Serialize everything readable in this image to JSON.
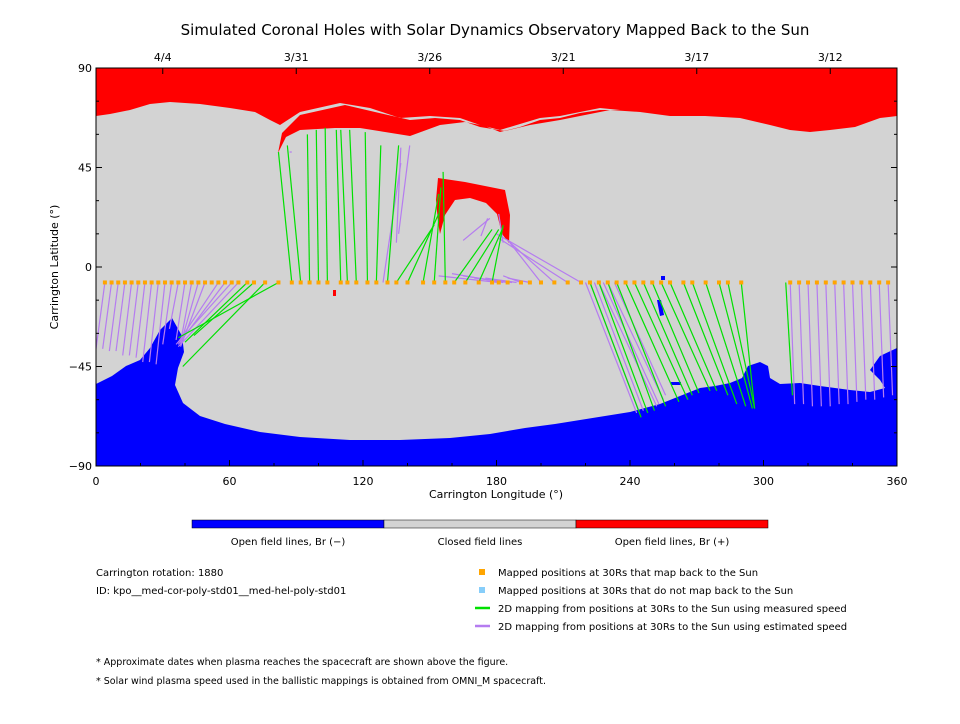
{
  "chart_data": {
    "type": "scatter",
    "title": "Simulated Coronal Holes with Solar Dynamics Observatory Mapped Back to the Sun",
    "xlabel": "Carrington Longitude (°)",
    "ylabel": "Carrington Latitude (°)",
    "xlim": [
      0,
      360
    ],
    "ylim": [
      -90,
      90
    ],
    "x_ticks": [
      "0",
      "60",
      "120",
      "180",
      "240",
      "300",
      "360"
    ],
    "x_tick_values": [
      0,
      60,
      120,
      180,
      240,
      300,
      360
    ],
    "y_ticks": [
      "90",
      "45",
      "0",
      "−45",
      "−90"
    ],
    "y_tick_values": [
      90,
      45,
      0,
      -45,
      -90
    ],
    "top_dates": [
      {
        "label": "4/4",
        "lon": 30
      },
      {
        "label": "3/31",
        "lon": 90
      },
      {
        "label": "3/26",
        "lon": 150
      },
      {
        "label": "3/21",
        "lon": 210
      },
      {
        "label": "3/17",
        "lon": 270
      },
      {
        "label": "3/12",
        "lon": 330
      }
    ],
    "colorbar": [
      {
        "label": "Open field lines, Br (−)",
        "color": "#0000ff"
      },
      {
        "label": "Closed field lines",
        "color": "#d3d3d3"
      },
      {
        "label": "Open field lines, Br (+)",
        "color": "#ff0000"
      }
    ],
    "legend": [
      {
        "label": "Mapped positions at 30Rs that map back to the Sun",
        "color": "#ffa500",
        "kind": "square"
      },
      {
        "label": "Mapped positions at 30Rs that do not map back to the Sun",
        "color": "#87cefa",
        "kind": "square"
      },
      {
        "label": "2D mapping from positions at 30Rs to the Sun using measured speed",
        "color": "#00e000",
        "kind": "line"
      },
      {
        "label": "2D mapping from positions at 30Rs to the Sun using estimated speed",
        "color": "#b57cf0",
        "kind": "line"
      }
    ],
    "positions_lat": -7,
    "series": [
      {
        "kind": "estimated",
        "color": "#b57cf0",
        "segments": [
          [
            4,
            -7,
            0,
            -37
          ],
          [
            7,
            -7,
            3,
            -37
          ],
          [
            10,
            -7,
            6,
            -38
          ],
          [
            13,
            -7,
            9,
            -38
          ],
          [
            16,
            -7,
            12,
            -40
          ],
          [
            19,
            -7,
            15,
            -40
          ],
          [
            22,
            -7,
            18,
            -41
          ],
          [
            25,
            -7,
            21,
            -43
          ],
          [
            28,
            -7,
            24,
            -43
          ],
          [
            31,
            -7,
            27,
            -44
          ],
          [
            34,
            -7,
            30,
            -35
          ],
          [
            37,
            -7,
            33,
            -28
          ],
          [
            40,
            -7,
            36,
            -33
          ],
          [
            43,
            -7,
            38,
            -34
          ],
          [
            46,
            -7,
            38,
            -35
          ],
          [
            49,
            -7,
            38,
            -36
          ],
          [
            55,
            -7,
            37,
            -34
          ],
          [
            58,
            -7,
            37,
            -35
          ],
          [
            61,
            -7,
            36,
            -35
          ],
          [
            64,
            -7,
            37,
            -36
          ],
          [
            181,
            -7,
            154,
            -4
          ],
          [
            183,
            -7,
            160,
            -3
          ],
          [
            185,
            -7,
            165,
            -4
          ],
          [
            187,
            -7,
            170,
            -5
          ],
          [
            189,
            -7,
            175,
            -5
          ],
          [
            191,
            -7,
            183,
            -4
          ],
          [
            195,
            -7,
            185,
            -5
          ],
          [
            200,
            -7,
            186,
            11
          ],
          [
            206,
            -7,
            185,
            12
          ],
          [
            212,
            -7,
            181,
            13
          ],
          [
            218,
            -7,
            180,
            15
          ],
          [
            220,
            -7,
            243,
            -66
          ],
          [
            222,
            -7,
            244,
            -65
          ],
          [
            224,
            -7,
            246,
            -65
          ],
          [
            226,
            -7,
            252,
            -63
          ],
          [
            228,
            -7,
            253,
            -62
          ],
          [
            230,
            -7,
            255,
            -60
          ],
          [
            233,
            -7,
            256,
            -58
          ],
          [
            312,
            -7,
            314,
            -62
          ],
          [
            316,
            -7,
            318,
            -62
          ],
          [
            320,
            -7,
            322,
            -63
          ],
          [
            324,
            -7,
            326,
            -63
          ],
          [
            328,
            -7,
            330,
            -63
          ],
          [
            332,
            -7,
            334,
            -62
          ],
          [
            336,
            -7,
            338,
            -62
          ],
          [
            340,
            -7,
            342,
            -61
          ],
          [
            344,
            -7,
            346,
            -60
          ],
          [
            348,
            -7,
            350,
            -60
          ],
          [
            352,
            -7,
            354,
            -59
          ],
          [
            356,
            -7,
            358,
            -58
          ],
          [
            87,
            52,
            88,
            52
          ],
          [
            165,
            12,
            177,
            22
          ],
          [
            173,
            14,
            176,
            22
          ],
          [
            183,
            11,
            181,
            24
          ],
          [
            136,
            15,
            141,
            55
          ],
          [
            129,
            -7,
            137,
            47
          ],
          [
            135,
            11,
            137,
            54
          ]
        ]
      },
      {
        "kind": "measured",
        "color": "#00e000",
        "segments": [
          [
            68,
            -7,
            40,
            -34
          ],
          [
            71,
            -7,
            44,
            -31
          ],
          [
            76,
            -7,
            39,
            -45
          ],
          [
            82,
            -7,
            37,
            -32
          ],
          [
            88,
            -7,
            82,
            52
          ],
          [
            92,
            -7,
            86,
            55
          ],
          [
            96,
            -7,
            95,
            60
          ],
          [
            100,
            -7,
            99,
            62
          ],
          [
            104,
            -7,
            103,
            63
          ],
          [
            110,
            -7,
            108,
            62
          ],
          [
            113,
            -7,
            110,
            62
          ],
          [
            117,
            -7,
            114,
            62
          ],
          [
            122,
            -7,
            121,
            61
          ],
          [
            126,
            -7,
            128,
            55
          ],
          [
            131,
            -7,
            136,
            55
          ],
          [
            135,
            -7,
            152,
            19
          ],
          [
            140,
            -7,
            154,
            24
          ],
          [
            147,
            -7,
            154,
            33
          ],
          [
            152,
            -7,
            155,
            36
          ],
          [
            157,
            -7,
            156,
            43
          ],
          [
            161,
            -7,
            178,
            17
          ],
          [
            166,
            -7,
            181,
            17
          ],
          [
            172,
            -7,
            183,
            18
          ],
          [
            178,
            -7,
            183,
            19
          ],
          [
            222,
            -7,
            245,
            -68
          ],
          [
            226,
            -7,
            248,
            -66
          ],
          [
            230,
            -7,
            251,
            -65
          ],
          [
            234,
            -7,
            256,
            -63
          ],
          [
            238,
            -7,
            262,
            -61
          ],
          [
            242,
            -7,
            266,
            -60
          ],
          [
            246,
            -7,
            268,
            -58
          ],
          [
            250,
            -7,
            271,
            -57
          ],
          [
            254,
            -7,
            276,
            -56
          ],
          [
            258,
            -7,
            279,
            -56
          ],
          [
            264,
            -7,
            284,
            -58
          ],
          [
            268,
            -7,
            288,
            -62
          ],
          [
            274,
            -7,
            292,
            -63
          ],
          [
            280,
            -7,
            295,
            -64
          ],
          [
            284,
            -7,
            296,
            -64
          ],
          [
            290,
            -7,
            296,
            -64
          ],
          [
            310,
            -7,
            313,
            -58
          ]
        ]
      },
      {
        "kind": "positions_mapped",
        "color": "#ffa500",
        "lon": [
          4,
          7,
          10,
          13,
          16,
          19,
          22,
          25,
          28,
          31,
          34,
          37,
          40,
          43,
          46,
          49,
          52,
          55,
          58,
          61,
          64,
          68,
          71,
          76,
          82,
          88,
          92,
          96,
          100,
          104,
          110,
          113,
          117,
          122,
          126,
          131,
          135,
          140,
          147,
          152,
          157,
          161,
          166,
          172,
          178,
          181,
          185,
          191,
          195,
          200,
          206,
          212,
          218,
          222,
          226,
          230,
          234,
          238,
          242,
          246,
          250,
          254,
          258,
          264,
          268,
          274,
          280,
          284,
          290,
          312,
          316,
          320,
          324,
          328,
          332,
          336,
          340,
          344,
          348,
          352,
          356
        ]
      },
      {
        "kind": "positions_unmapped",
        "color": "#87cefa",
        "lon": []
      }
    ]
  },
  "info": {
    "rotation": "Carrington rotation: 1880",
    "id": "ID: kpo__med-cor-poly-std01__med-hel-poly-std01"
  },
  "footnotes": [
    "* Approximate dates when plasma reaches the spacecraft are shown above the figure.",
    "* Solar wind plasma speed used in the ballistic mappings is obtained from OMNI_M spacecraft."
  ]
}
